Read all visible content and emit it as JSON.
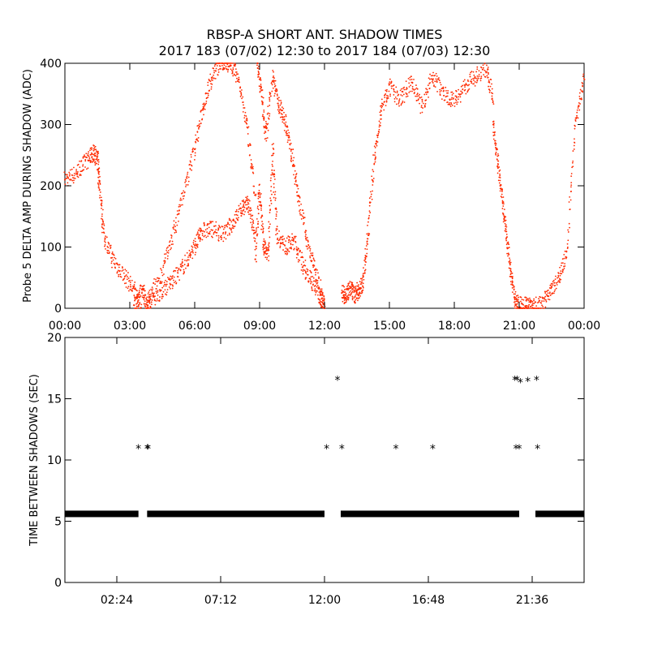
{
  "title": [
    "RBSP-A SHORT ANT. SHADOW TIMES",
    "2017 183 (07/02) 12:30 to 2017 184 (07/03) 12:30"
  ],
  "chart_data": [
    {
      "type": "scatter",
      "ylabel": "Probe 5 DELTA AMP DURING SHADOW (ADC)",
      "xlim": [
        0,
        24
      ],
      "ylim": [
        0,
        400
      ],
      "x_ticks": [
        0,
        3,
        6,
        9,
        12,
        15,
        18,
        21,
        24
      ],
      "x_tick_labels": [
        "00:00",
        "03:00",
        "06:00",
        "09:00",
        "12:00",
        "15:00",
        "18:00",
        "21:00",
        "00:00"
      ],
      "y_ticks": [
        0,
        100,
        200,
        300,
        400
      ],
      "color": "#ff2a00",
      "series": [
        {
          "x": [
            0.0,
            0.5,
            1.0,
            1.3,
            1.5,
            1.6,
            1.8,
            2.2,
            2.7,
            3.2,
            3.5
          ],
          "y": [
            210,
            220,
            240,
            255,
            245,
            200,
            120,
            80,
            55,
            30,
            5
          ]
        },
        {
          "x": [
            3.2,
            3.6,
            3.8,
            4.0,
            4.5,
            5.0,
            5.5,
            6.0,
            6.3,
            6.8,
            7.3,
            7.8,
            8.2,
            8.5,
            8.8
          ],
          "y": [
            5,
            30,
            5,
            15,
            30,
            45,
            70,
            100,
            125,
            130,
            120,
            140,
            165,
            170,
            110
          ]
        },
        {
          "x": [
            3.8,
            4.5,
            5.0,
            5.5,
            6.0,
            6.4,
            6.8,
            7.2,
            7.6,
            8.0,
            8.4,
            8.8
          ],
          "y": [
            10,
            60,
            120,
            190,
            260,
            330,
            380,
            400,
            400,
            380,
            300,
            180
          ]
        },
        {
          "x": [
            8.8,
            9.0,
            9.2,
            9.4,
            9.6,
            9.8,
            10.2,
            10.6,
            11.0,
            11.4,
            11.8,
            12.0
          ],
          "y": [
            80,
            200,
            100,
            90,
            260,
            120,
            100,
            110,
            70,
            45,
            20,
            5
          ]
        },
        {
          "x": [
            8.9,
            9.1,
            9.3,
            9.6,
            9.9,
            10.2,
            10.5,
            10.8,
            11.2,
            11.6,
            12.0
          ],
          "y": [
            400,
            350,
            280,
            380,
            330,
            300,
            250,
            180,
            110,
            60,
            5
          ]
        },
        {
          "x": [
            12.8,
            13.0,
            13.2,
            13.4,
            13.6,
            13.8,
            14.0,
            14.3,
            14.6,
            15.0,
            15.5,
            16.0,
            16.5,
            17.0,
            17.5,
            18.0,
            18.5,
            19.0,
            19.5,
            19.8
          ],
          "y": [
            25,
            20,
            30,
            22,
            30,
            40,
            120,
            240,
            320,
            360,
            340,
            370,
            330,
            380,
            350,
            340,
            360,
            380,
            390,
            340
          ]
        },
        {
          "x": [
            19.8,
            20.0,
            20.2,
            20.4,
            20.6,
            20.8,
            21.0,
            21.3,
            21.6,
            22.0,
            22.4,
            22.8,
            23.2,
            23.6,
            24.0
          ],
          "y": [
            300,
            240,
            180,
            120,
            60,
            15,
            5,
            5,
            3,
            5,
            25,
            50,
            85,
            300,
            380
          ]
        }
      ]
    },
    {
      "type": "scatter",
      "ylabel": "TIME BETWEEN SHADOWS (SEC)",
      "xlim": [
        0,
        24
      ],
      "ylim": [
        0,
        20
      ],
      "x_ticks": [
        2.4,
        7.2,
        12.0,
        16.8,
        21.6
      ],
      "x_tick_labels": [
        "02:24",
        "07:12",
        "12:00",
        "16:48",
        "21:36"
      ],
      "y_ticks": [
        0,
        5,
        10,
        15,
        20
      ],
      "marker": "*",
      "baseline": {
        "y": 5.6,
        "x_segments": [
          [
            0.0,
            3.4
          ],
          [
            3.8,
            12.0
          ],
          [
            12.75,
            21.0
          ],
          [
            21.75,
            24.0
          ]
        ]
      },
      "x": [
        3.4,
        3.8,
        3.85,
        12.1,
        12.6,
        12.8,
        15.3,
        17.0,
        20.8,
        20.9,
        21.0,
        21.4,
        21.8,
        21.85,
        20.85,
        21.05
      ],
      "y": [
        11.0,
        11.0,
        11.0,
        11.0,
        16.6,
        11.0,
        11.0,
        11.0,
        16.6,
        16.6,
        11.0,
        16.5,
        16.6,
        11.0,
        11.0,
        16.4
      ]
    }
  ]
}
